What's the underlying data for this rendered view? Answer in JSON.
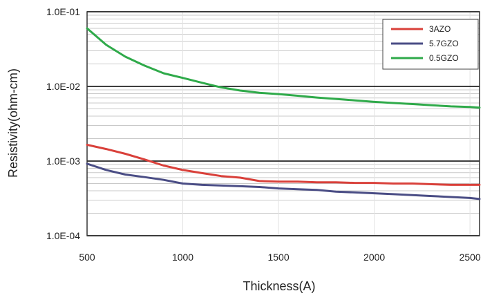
{
  "chart_data": {
    "type": "line",
    "title": "",
    "xlabel": "Thickness(A)",
    "ylabel": "Resistivity(ohm-cm)",
    "x_scale": "linear",
    "y_scale": "log",
    "xlim": [
      500,
      2550
    ],
    "ylim": [
      0.0001,
      0.1
    ],
    "x_ticks": [
      500,
      1000,
      1500,
      2000,
      2500
    ],
    "x_tick_labels": [
      "500",
      "1000",
      "1500",
      "2000",
      "2500"
    ],
    "y_ticks": [
      0.0001,
      0.001,
      0.01,
      0.1
    ],
    "y_tick_labels": [
      "1.0E-04",
      "1.0E-03",
      "1.0E-02",
      "1.0E-01"
    ],
    "grid": true,
    "legend_position": "top-right",
    "series": [
      {
        "name": "3AZO",
        "color": "#d9403a",
        "x": [
          500,
          600,
          700,
          800,
          900,
          1000,
          1100,
          1200,
          1300,
          1400,
          1500,
          1600,
          1700,
          1800,
          1900,
          2000,
          2100,
          2200,
          2300,
          2400,
          2500,
          2550
        ],
        "y": [
          0.00165,
          0.00145,
          0.00125,
          0.00105,
          0.00087,
          0.00076,
          0.00069,
          0.00063,
          0.0006,
          0.00054,
          0.00053,
          0.00053,
          0.00052,
          0.00052,
          0.00051,
          0.00051,
          0.0005,
          0.0005,
          0.00049,
          0.00048,
          0.00048,
          0.00048
        ]
      },
      {
        "name": "5.7GZO",
        "color": "#4a4d85",
        "x": [
          500,
          600,
          700,
          800,
          900,
          1000,
          1100,
          1200,
          1300,
          1400,
          1500,
          1600,
          1700,
          1800,
          1900,
          2000,
          2100,
          2200,
          2300,
          2400,
          2500,
          2550
        ],
        "y": [
          0.00092,
          0.00076,
          0.00066,
          0.00061,
          0.00056,
          0.0005,
          0.00048,
          0.00047,
          0.00046,
          0.00045,
          0.00043,
          0.00042,
          0.00041,
          0.00039,
          0.00038,
          0.00037,
          0.00036,
          0.00035,
          0.00034,
          0.00033,
          0.00032,
          0.00031
        ]
      },
      {
        "name": "0.5GZO",
        "color": "#2faa4a",
        "x": [
          500,
          600,
          700,
          800,
          900,
          1000,
          1100,
          1200,
          1300,
          1400,
          1500,
          1600,
          1700,
          1800,
          1900,
          2000,
          2100,
          2200,
          2300,
          2400,
          2500,
          2550
        ],
        "y": [
          0.06,
          0.036,
          0.025,
          0.019,
          0.015,
          0.013,
          0.0112,
          0.0097,
          0.0088,
          0.0082,
          0.0079,
          0.0075,
          0.0071,
          0.0068,
          0.0065,
          0.0062,
          0.006,
          0.0058,
          0.0056,
          0.0054,
          0.0053,
          0.0052
        ]
      }
    ]
  }
}
